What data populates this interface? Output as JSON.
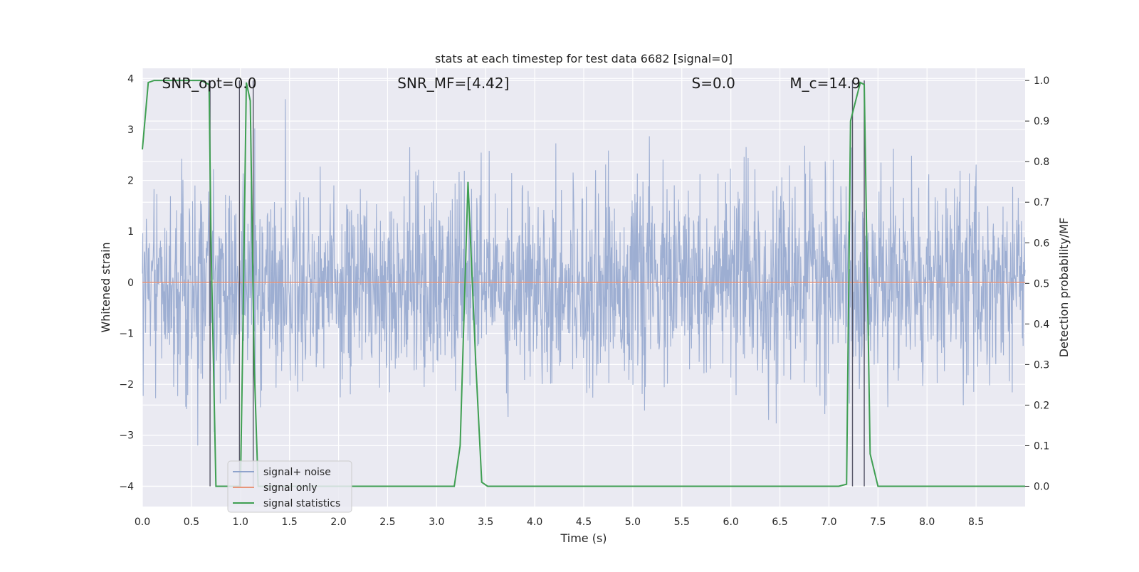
{
  "chart_data": {
    "type": "line",
    "title": "stats at each timestep for test data 6682 [signal=0]",
    "xlabel": "Time (s)",
    "ylabel": "Whitened strain",
    "y2label": "Detection probability/MF",
    "xlim": [
      0.0,
      9.0
    ],
    "ylim": [
      -4.4,
      4.2
    ],
    "y2lim": [
      -0.05,
      1.03
    ],
    "x_ticks": [
      "0.0",
      "0.5",
      "1.0",
      "1.5",
      "2.0",
      "2.5",
      "3.0",
      "3.5",
      "4.0",
      "4.5",
      "5.0",
      "5.5",
      "6.0",
      "6.5",
      "7.0",
      "7.5",
      "8.0",
      "8.5"
    ],
    "y_ticks": [
      "4",
      "3",
      "2",
      "1",
      "0",
      "−1",
      "−2",
      "−3",
      "−4"
    ],
    "y2_ticks": [
      "1.0",
      "0.9",
      "0.8",
      "0.7",
      "0.6",
      "0.5",
      "0.4",
      "0.3",
      "0.2",
      "0.1",
      "0.0"
    ],
    "grid": true,
    "legend_position": "lower-left",
    "annotations": [
      {
        "text": "SNR_opt=0.0",
        "x": 0.2
      },
      {
        "text": "SNR_MF=[4.42]",
        "x": 2.6
      },
      {
        "text": "S=0.0",
        "x": 5.6
      },
      {
        "text": "M_c=14.9",
        "x": 6.6
      }
    ],
    "series": [
      {
        "name": "signal+ noise",
        "color": "#8fa3cc",
        "kind": "noise",
        "approx_envelope": [
          -1.6,
          1.5
        ],
        "peak_range": [
          -3.7,
          3.9
        ]
      },
      {
        "name": "signal only",
        "color": "#e8957a",
        "kind": "flat",
        "value": 0.0
      },
      {
        "name": "signal statistics",
        "color": "#3f9f52",
        "axis": "right",
        "x": [
          0.0,
          0.06,
          0.12,
          0.2,
          0.6,
          0.68,
          0.7,
          0.75,
          0.8,
          1.0,
          1.02,
          1.06,
          1.1,
          1.14,
          1.18,
          1.5,
          3.18,
          3.24,
          3.32,
          3.4,
          3.46,
          3.52,
          7.1,
          7.18,
          7.22,
          7.32,
          7.36,
          7.42,
          7.5,
          7.65,
          8.0,
          9.0
        ],
        "values": [
          0.83,
          0.995,
          1.0,
          1.0,
          1.0,
          0.99,
          0.6,
          0.0,
          0.0,
          0.0,
          0.3,
          0.995,
          0.95,
          0.3,
          0.0,
          0.0,
          0.0,
          0.1,
          0.75,
          0.3,
          0.01,
          0.0,
          0.0,
          0.005,
          0.9,
          0.995,
          0.99,
          0.08,
          0.0,
          0.0,
          0.0,
          0.0
        ]
      }
    ],
    "vertical_markers": [
      0.69,
      0.99,
      1.13,
      7.24,
      7.36
    ]
  }
}
